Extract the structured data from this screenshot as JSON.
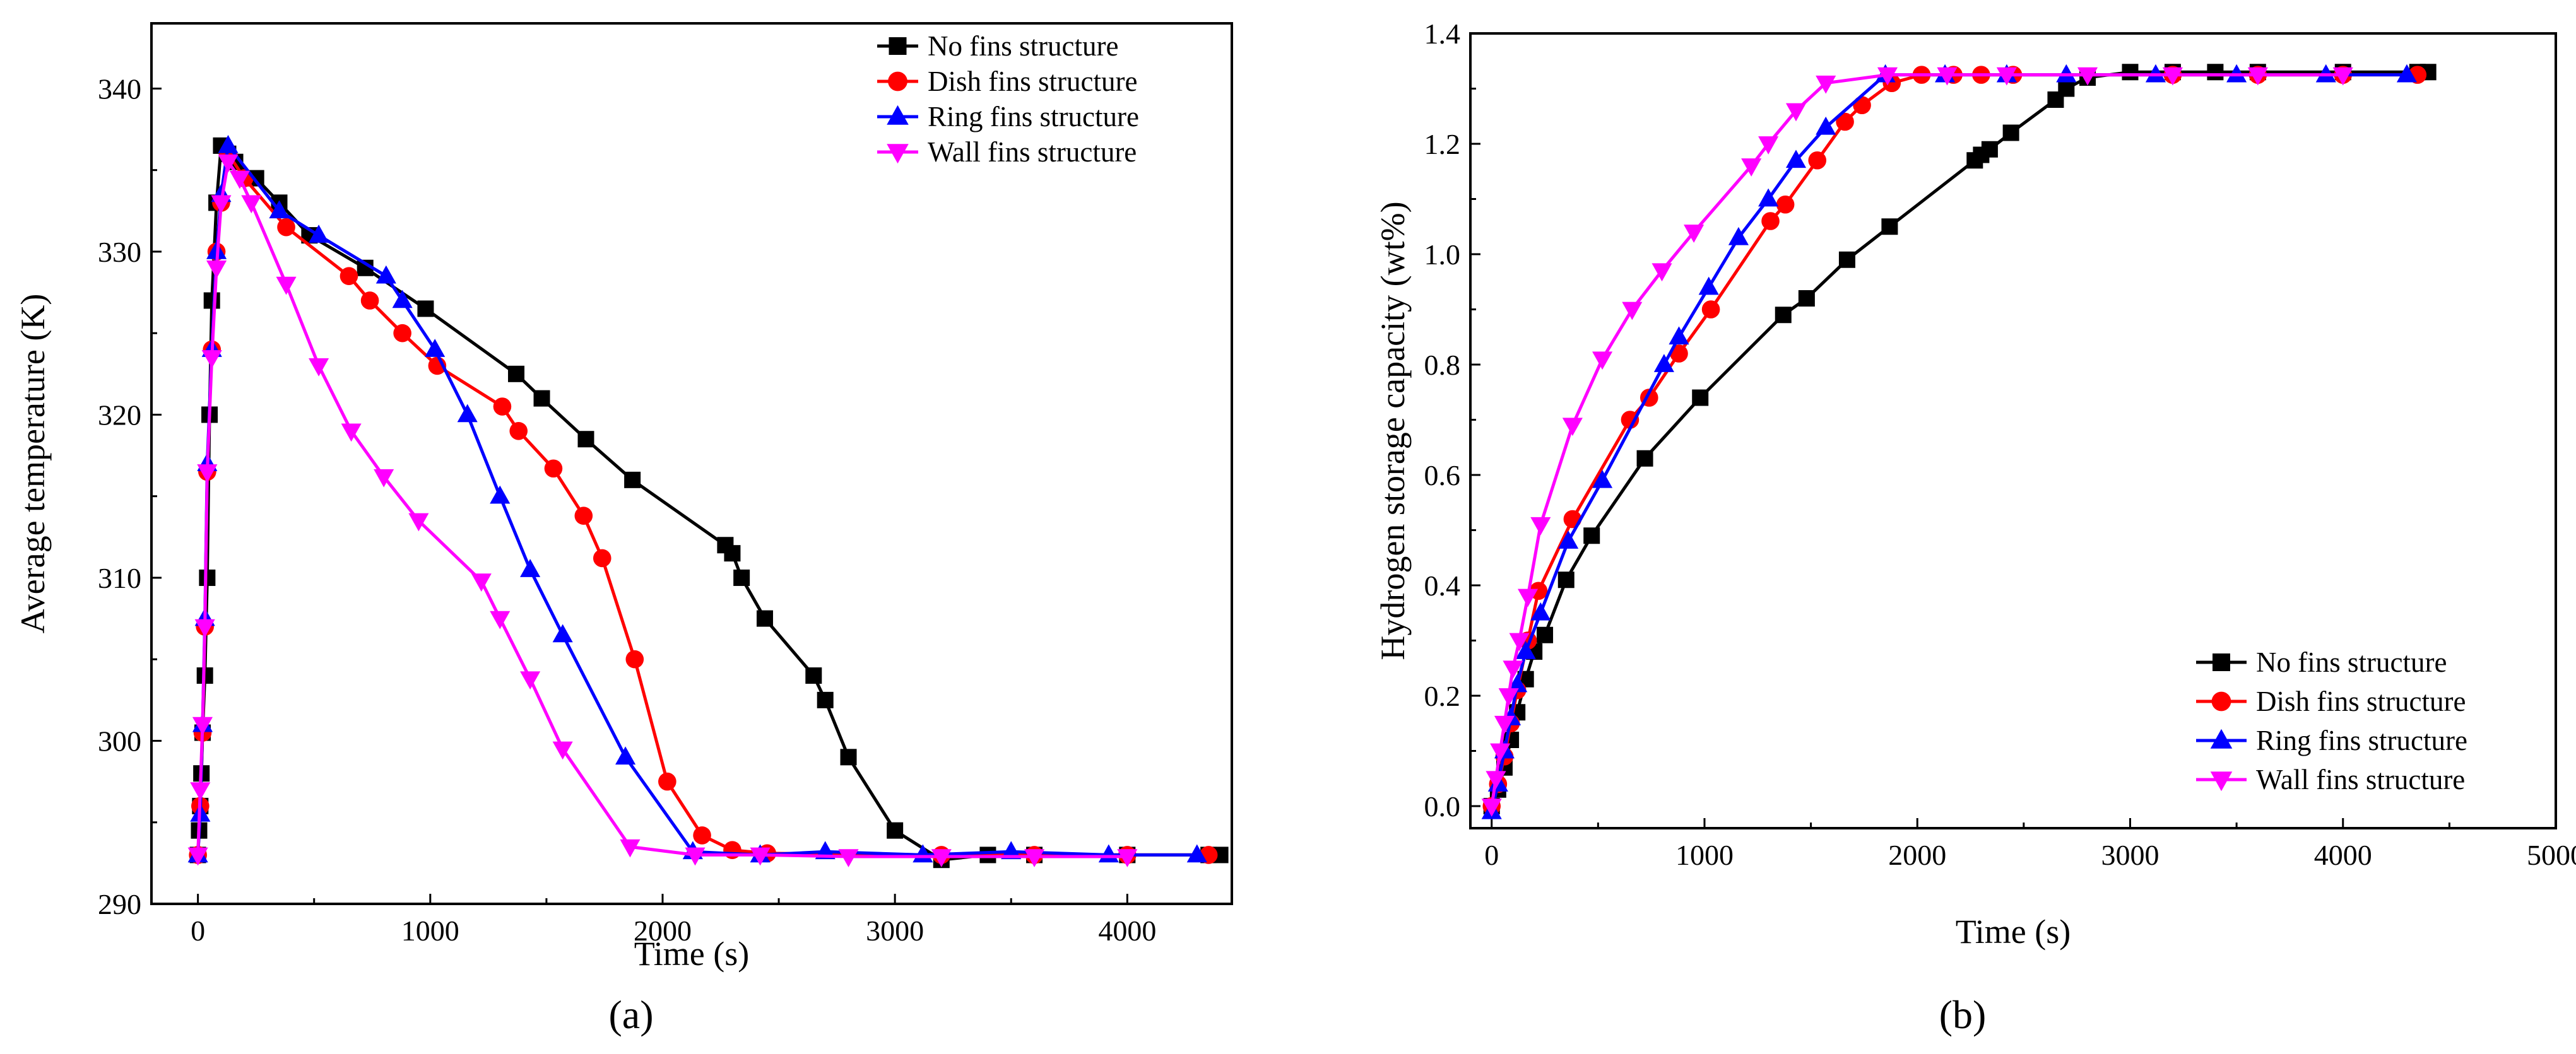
{
  "panel_labels": [
    "(a)",
    "(b)"
  ],
  "colors": {
    "No fins structure": "#000000",
    "Dish fins structure": "#ff0000",
    "Ring fins structure": "#0000ff",
    "Wall fins structure": "#ff00ff"
  },
  "markers": {
    "No fins structure": "square",
    "Dish fins structure": "circle",
    "Ring fins structure": "triangle-up",
    "Wall fins structure": "triangle-down"
  },
  "chart_data": [
    {
      "type": "line",
      "label": "(a)",
      "title": "",
      "xlabel": "Time (s)",
      "ylabel": "Average temperature (K)",
      "xlim": [
        -200,
        4450
      ],
      "ylim": [
        290,
        344
      ],
      "xticks": [
        0,
        1000,
        2000,
        3000,
        4000
      ],
      "yticks": [
        290,
        300,
        310,
        320,
        330,
        340
      ],
      "legend": "top-right",
      "series": [
        {
          "name": "No fins structure",
          "x": [
            0,
            5,
            10,
            15,
            20,
            30,
            40,
            50,
            60,
            80,
            100,
            130,
            160,
            250,
            350,
            480,
            720,
            980,
            1370,
            1480,
            1670,
            1870,
            2270,
            2300,
            2340,
            2440,
            2650,
            2700,
            2800,
            3000,
            3200,
            3400,
            3600,
            4000,
            4350,
            4400
          ],
          "y": [
            293,
            294.5,
            296,
            298,
            300.5,
            304,
            310,
            320,
            327,
            333,
            336.5,
            336,
            335.5,
            334.5,
            333,
            331,
            329,
            326.5,
            322.5,
            321,
            318.5,
            316,
            312,
            311.5,
            310,
            307.5,
            304,
            302.5,
            299,
            294.5,
            292.7,
            293,
            293,
            293,
            293,
            293
          ]
        },
        {
          "name": "Dish fins structure",
          "x": [
            0,
            10,
            20,
            30,
            40,
            60,
            80,
            100,
            130,
            200,
            380,
            650,
            740,
            880,
            1030,
            1310,
            1380,
            1530,
            1660,
            1740,
            1880,
            2020,
            2170,
            2300,
            2450,
            3200,
            3600,
            4000,
            4350
          ],
          "y": [
            293,
            296,
            300.5,
            307,
            316.5,
            324,
            330,
            333,
            336,
            334.5,
            331.5,
            328.5,
            327,
            325,
            323,
            320.5,
            319,
            316.7,
            313.8,
            311.2,
            305,
            297.5,
            294.2,
            293.3,
            293.1,
            293,
            293,
            293,
            293
          ]
        },
        {
          "name": "Ring fins structure",
          "x": [
            0,
            10,
            20,
            30,
            40,
            60,
            80,
            100,
            130,
            350,
            520,
            810,
            880,
            1020,
            1160,
            1300,
            1430,
            1570,
            1840,
            2130,
            2420,
            2700,
            3120,
            3500,
            3920,
            4300
          ],
          "y": [
            293,
            295.5,
            301,
            307.5,
            317,
            324,
            330,
            333.5,
            336.5,
            332.5,
            331,
            328.5,
            327,
            324,
            320,
            315,
            310.5,
            306.5,
            299,
            293.2,
            293,
            293.2,
            293,
            293.2,
            293,
            293
          ]
        },
        {
          "name": "Wall fins structure",
          "x": [
            0,
            10,
            20,
            30,
            40,
            60,
            80,
            100,
            130,
            180,
            230,
            380,
            520,
            660,
            800,
            950,
            1220,
            1300,
            1430,
            1570,
            1860,
            2140,
            2420,
            2800,
            3200,
            3600,
            4000
          ],
          "y": [
            293,
            297,
            301,
            307,
            316.5,
            323.5,
            329,
            333,
            335.5,
            334.5,
            333,
            328,
            323,
            319,
            316.2,
            313.5,
            309.8,
            307.5,
            303.8,
            299.5,
            293.5,
            293,
            293,
            292.9,
            292.9,
            292.9,
            292.9
          ]
        }
      ]
    },
    {
      "type": "line",
      "label": "(b)",
      "title": "",
      "xlabel": "Time (s)",
      "ylabel": "Hydrogen storage capacity (wt%)",
      "xlim": [
        -100,
        5000
      ],
      "ylim": [
        -0.04,
        1.4
      ],
      "xticks": [
        0,
        1000,
        2000,
        3000,
        4000,
        5000
      ],
      "yticks": [
        0.0,
        0.2,
        0.4,
        0.6,
        0.8,
        1.0,
        1.2,
        1.4
      ],
      "legend": "bottom-right",
      "series": [
        {
          "name": "No fins structure",
          "x": [
            0,
            30,
            60,
            90,
            120,
            160,
            200,
            250,
            350,
            470,
            720,
            980,
            1370,
            1480,
            1670,
            1870,
            2270,
            2300,
            2340,
            2440,
            2650,
            2700,
            2800,
            3000,
            3200,
            3400,
            3600,
            4000,
            4350,
            4400
          ],
          "y": [
            0,
            0.03,
            0.07,
            0.12,
            0.17,
            0.23,
            0.28,
            0.31,
            0.41,
            0.49,
            0.63,
            0.74,
            0.89,
            0.92,
            0.99,
            1.05,
            1.17,
            1.18,
            1.19,
            1.22,
            1.28,
            1.3,
            1.32,
            1.33,
            1.33,
            1.33,
            1.33,
            1.33,
            1.33,
            1.33
          ]
        },
        {
          "name": "Dish fins structure",
          "x": [
            0,
            30,
            60,
            90,
            120,
            170,
            220,
            380,
            650,
            740,
            880,
            1030,
            1310,
            1380,
            1530,
            1660,
            1740,
            1880,
            2020,
            2170,
            2300,
            2450,
            3200,
            3600,
            4000,
            4350
          ],
          "y": [
            0,
            0.04,
            0.09,
            0.15,
            0.21,
            0.3,
            0.39,
            0.52,
            0.7,
            0.74,
            0.82,
            0.9,
            1.06,
            1.09,
            1.17,
            1.24,
            1.27,
            1.31,
            1.325,
            1.325,
            1.325,
            1.325,
            1.325,
            1.325,
            1.325,
            1.325
          ]
        },
        {
          "name": "Ring fins structure",
          "x": [
            0,
            30,
            60,
            90,
            120,
            160,
            230,
            360,
            520,
            810,
            880,
            1020,
            1160,
            1300,
            1430,
            1570,
            1850,
            2130,
            2420,
            2700,
            3120,
            3500,
            3920,
            4300
          ],
          "y": [
            -0.01,
            0.04,
            0.1,
            0.16,
            0.22,
            0.28,
            0.35,
            0.48,
            0.59,
            0.8,
            0.85,
            0.94,
            1.03,
            1.1,
            1.17,
            1.23,
            1.325,
            1.325,
            1.325,
            1.325,
            1.325,
            1.325,
            1.325,
            1.325
          ]
        },
        {
          "name": "Wall fins structure",
          "x": [
            0,
            20,
            40,
            60,
            80,
            100,
            130,
            170,
            230,
            380,
            520,
            660,
            800,
            950,
            1220,
            1300,
            1430,
            1570,
            1860,
            2140,
            2420,
            2800,
            3200,
            3600,
            4000
          ],
          "y": [
            0,
            0.05,
            0.1,
            0.15,
            0.2,
            0.25,
            0.3,
            0.38,
            0.51,
            0.69,
            0.81,
            0.9,
            0.97,
            1.04,
            1.16,
            1.2,
            1.26,
            1.31,
            1.325,
            1.325,
            1.325,
            1.325,
            1.325,
            1.325,
            1.325
          ]
        }
      ]
    }
  ]
}
